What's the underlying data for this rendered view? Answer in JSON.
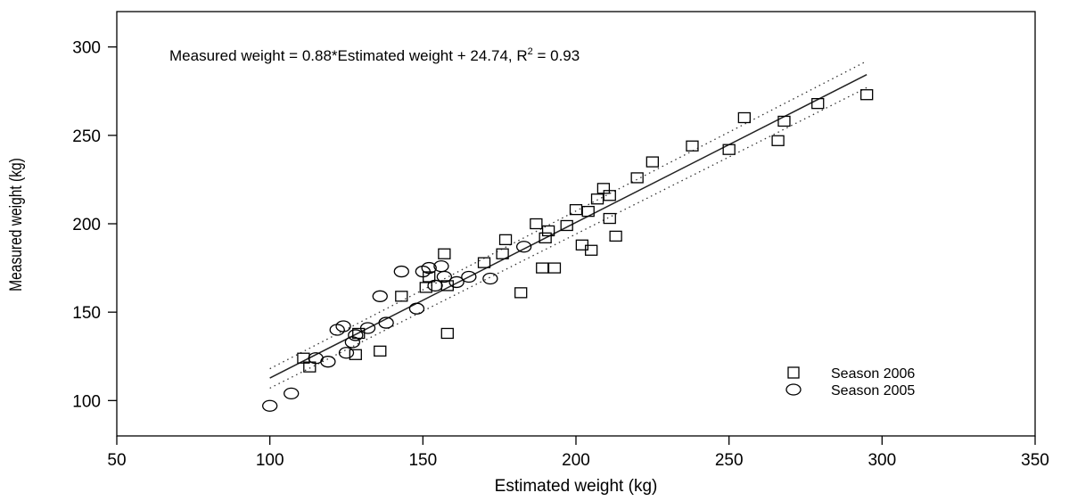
{
  "chart_data": {
    "type": "scatter",
    "title": "",
    "xlabel": "Estimated weight (kg)",
    "ylabel": "Measured weight (kg)",
    "xlim": [
      50,
      350
    ],
    "ylim": [
      80,
      320
    ],
    "x_ticks": [
      50,
      100,
      150,
      200,
      250,
      300,
      350
    ],
    "y_ticks": [
      100,
      150,
      200,
      250,
      300
    ],
    "x_tick_labels": [
      "50",
      "100",
      "150",
      "200",
      "250",
      "300",
      "350"
    ],
    "y_tick_labels": [
      "100",
      "150",
      "200",
      "250",
      "300"
    ],
    "grid": false,
    "legend_position": "bottom-right",
    "annotation": {
      "text_before": "Measured weight = 0.88*Estimated weight + 24.74, R",
      "superscript": "2",
      "text_after": " = 0.93"
    },
    "regression": {
      "slope": 0.88,
      "intercept": 24.74,
      "x_range": [
        100,
        295
      ]
    },
    "confidence_band": {
      "upper": [
        [
          100,
          118
        ],
        [
          295,
          292
        ]
      ],
      "lower": [
        [
          100,
          107
        ],
        [
          295,
          277
        ]
      ]
    },
    "series": [
      {
        "name": "Season 2006",
        "marker": "square",
        "points": [
          [
            111,
            124
          ],
          [
            113,
            119
          ],
          [
            128,
            126
          ],
          [
            129,
            138
          ],
          [
            136,
            128
          ],
          [
            143,
            159
          ],
          [
            151,
            164
          ],
          [
            152,
            170
          ],
          [
            157,
            183
          ],
          [
            158,
            138
          ],
          [
            158,
            165
          ],
          [
            170,
            178
          ],
          [
            176,
            183
          ],
          [
            177,
            191
          ],
          [
            182,
            161
          ],
          [
            187,
            200
          ],
          [
            189,
            175
          ],
          [
            190,
            192
          ],
          [
            191,
            196
          ],
          [
            193,
            175
          ],
          [
            197,
            199
          ],
          [
            200,
            208
          ],
          [
            202,
            188
          ],
          [
            204,
            207
          ],
          [
            205,
            185
          ],
          [
            207,
            214
          ],
          [
            209,
            220
          ],
          [
            211,
            216
          ],
          [
            211,
            203
          ],
          [
            213,
            193
          ],
          [
            220,
            226
          ],
          [
            225,
            235
          ],
          [
            238,
            244
          ],
          [
            250,
            242
          ],
          [
            255,
            260
          ],
          [
            266,
            247
          ],
          [
            268,
            258
          ],
          [
            279,
            268
          ],
          [
            295,
            273
          ]
        ]
      },
      {
        "name": "Season 2005",
        "marker": "circle",
        "points": [
          [
            100,
            97
          ],
          [
            107,
            104
          ],
          [
            115,
            124
          ],
          [
            119,
            122
          ],
          [
            122,
            140
          ],
          [
            124,
            142
          ],
          [
            125,
            127
          ],
          [
            127,
            133
          ],
          [
            128,
            137
          ],
          [
            132,
            141
          ],
          [
            136,
            159
          ],
          [
            138,
            144
          ],
          [
            143,
            173
          ],
          [
            148,
            152
          ],
          [
            150,
            173
          ],
          [
            152,
            175
          ],
          [
            154,
            165
          ],
          [
            156,
            176
          ],
          [
            157,
            170
          ],
          [
            161,
            167
          ],
          [
            165,
            170
          ],
          [
            172,
            169
          ],
          [
            183,
            187
          ]
        ]
      }
    ]
  }
}
